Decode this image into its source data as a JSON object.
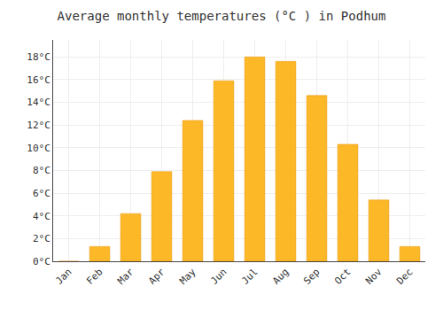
{
  "chart_data": {
    "type": "bar",
    "title": "Average monthly temperatures (°C ) in Podhum",
    "categories": [
      "Jan",
      "Feb",
      "Mar",
      "Apr",
      "May",
      "Jun",
      "Jul",
      "Aug",
      "Sep",
      "Oct",
      "Nov",
      "Dec"
    ],
    "values": [
      0.0,
      1.3,
      4.2,
      7.9,
      12.4,
      15.9,
      18.0,
      17.6,
      14.6,
      10.3,
      5.4,
      1.3
    ],
    "color": "#FDB827",
    "ylim": [
      0,
      19.5
    ],
    "yticks": [
      {
        "value": 0,
        "label": "0°C"
      },
      {
        "value": 2,
        "label": "2°C"
      },
      {
        "value": 4,
        "label": "4°C"
      },
      {
        "value": 6,
        "label": "6°C"
      },
      {
        "value": 8,
        "label": "8°C"
      },
      {
        "value": 10,
        "label": "10°C"
      },
      {
        "value": 12,
        "label": "12°C"
      },
      {
        "value": 14,
        "label": "14°C"
      },
      {
        "value": 16,
        "label": "16°C"
      },
      {
        "value": 18,
        "label": "18°C"
      }
    ],
    "grid": true
  }
}
